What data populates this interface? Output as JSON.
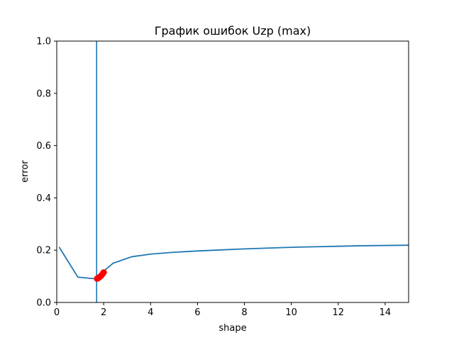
{
  "chart_data": {
    "type": "line",
    "title": "График ошибок Uzp (max)",
    "xlabel": "shape",
    "ylabel": "error",
    "xlim": [
      0,
      15
    ],
    "ylim": [
      0,
      1.0
    ],
    "xticks": [
      "0",
      "2",
      "4",
      "6",
      "8",
      "10",
      "12",
      "14"
    ],
    "yticks": [
      "0.0",
      "0.2",
      "0.4",
      "0.6",
      "0.8",
      "1.0"
    ],
    "xtick_values": [
      0,
      2,
      4,
      6,
      8,
      10,
      12,
      14
    ],
    "ytick_values": [
      0,
      0.2,
      0.4,
      0.6,
      0.8,
      1.0
    ],
    "grid": false,
    "series": [
      {
        "color": "#1f77b4",
        "x": [
          0.1,
          0.9,
          1.7,
          2.0,
          2.4,
          3.2,
          4.0,
          5.0,
          6.0,
          7.0,
          8.0,
          9.0,
          10.0,
          11.0,
          12.0,
          13.0,
          14.0,
          15.0
        ],
        "y": [
          0.212,
          0.097,
          0.09,
          0.12,
          0.15,
          0.175,
          0.185,
          0.192,
          0.197,
          0.201,
          0.205,
          0.208,
          0.211,
          0.213,
          0.215,
          0.217,
          0.218,
          0.219
        ]
      }
    ],
    "vline": {
      "x": 1.7,
      "color": "#1f77b4"
    },
    "markers": {
      "color": "#ff0000",
      "x": [
        1.72,
        1.78,
        1.84,
        1.9,
        1.96,
        2.0
      ],
      "y": [
        0.091,
        0.094,
        0.098,
        0.103,
        0.11,
        0.115
      ]
    }
  }
}
